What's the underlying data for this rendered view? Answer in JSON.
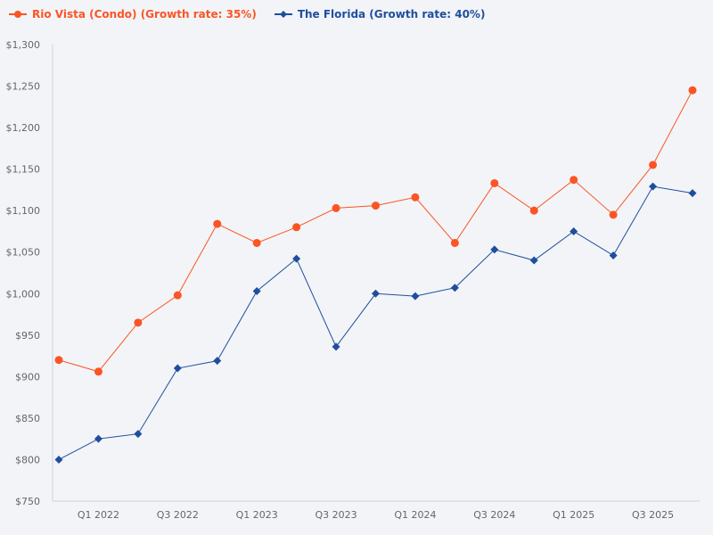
{
  "chart_data": {
    "type": "line",
    "title": "",
    "xlabel": "",
    "ylabel": "",
    "ylim": [
      750,
      1300
    ],
    "y_ticks": [
      "$750",
      "$800",
      "$850",
      "$900",
      "$950",
      "$1,000",
      "$1,050",
      "$1,100",
      "$1,150",
      "$1,200",
      "$1,250",
      "$1,300"
    ],
    "y_tick_values": [
      750,
      800,
      850,
      900,
      950,
      1000,
      1050,
      1100,
      1150,
      1200,
      1250,
      1300
    ],
    "categories": [
      "",
      "Q1 2022",
      "",
      "Q3 2022",
      "",
      "Q1 2023",
      "",
      "Q3 2023",
      "",
      "Q1 2024",
      "",
      "Q3 2024",
      "",
      "Q1 2025",
      "",
      "Q3 2025",
      ""
    ],
    "grid": false,
    "legend_position": "top-left",
    "series": [
      {
        "name": "Rio Vista (Condo) (Growth rate: 35%)",
        "color": "#fc5424",
        "marker": "circle",
        "values": [
          920,
          906,
          965,
          998,
          1084,
          1061,
          1080,
          1103,
          1106,
          1116,
          1061,
          1133,
          1100,
          1137,
          1095,
          1155,
          1245
        ]
      },
      {
        "name": "The Florida (Growth rate: 40%)",
        "color": "#1f4e9e",
        "marker": "diamond",
        "values": [
          800,
          825,
          831,
          910,
          919,
          1003,
          1042,
          936,
          1000,
          997,
          1007,
          1053,
          1040,
          1075,
          1046,
          1129,
          1121
        ]
      }
    ]
  }
}
